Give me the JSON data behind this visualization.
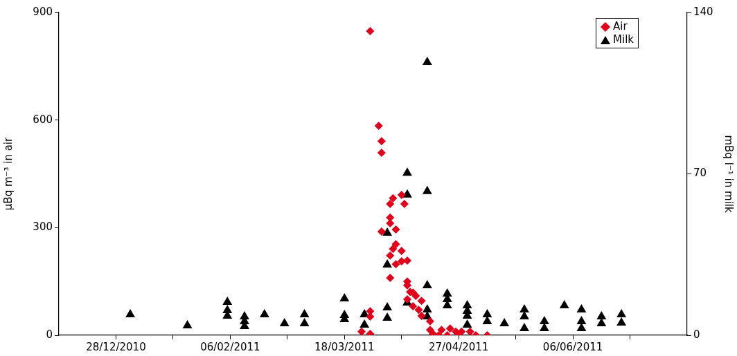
{
  "chart_data": {
    "type": "scatter",
    "ylabel": "µBq m⁻³ in air",
    "y2label": "mBq l⁻¹ in milk",
    "xlim": [
      "2010-12-08",
      "2011-07-16"
    ],
    "xticks": [
      {
        "value": "2010-12-28",
        "label": "28/12/2010"
      },
      {
        "value": "2011-01-17",
        "label": null
      },
      {
        "value": "2011-02-06",
        "label": "06/02/2011"
      },
      {
        "value": "2011-02-26",
        "label": null
      },
      {
        "value": "2011-03-18",
        "label": "18/03/2011"
      },
      {
        "value": "2011-04-07",
        "label": null
      },
      {
        "value": "2011-04-27",
        "label": "27/04/2011"
      },
      {
        "value": "2011-05-17",
        "label": null
      },
      {
        "value": "2011-06-06",
        "label": "06/06/2011"
      },
      {
        "value": "2011-06-26",
        "label": null
      }
    ],
    "ylim": [
      0,
      900
    ],
    "yticks": [
      0,
      300,
      600,
      900
    ],
    "y2lim": [
      0,
      140
    ],
    "y2ticks": [
      0,
      70,
      140
    ],
    "grid": false,
    "legend": "top right",
    "series": [
      {
        "name": "Air",
        "color": "#e2001a",
        "marker": "diamond",
        "x": [
          "2011-03-24",
          "2011-03-27",
          "2011-03-27",
          "2011-03-27",
          "2011-03-27",
          "2011-03-30",
          "2011-03-31",
          "2011-03-31",
          "2011-04-04",
          "2011-04-03",
          "2011-04-07",
          "2011-04-08",
          "2011-04-03",
          "2011-04-03",
          "2011-04-05",
          "2011-03-31",
          "2011-04-05",
          "2011-04-04",
          "2011-04-07",
          "2011-04-03",
          "2011-04-07",
          "2011-04-09",
          "2011-04-05",
          "2011-04-03",
          "2011-04-09",
          "2011-04-09",
          "2011-04-10",
          "2011-04-11",
          "2011-04-09",
          "2011-04-12",
          "2011-04-14",
          "2011-04-11",
          "2011-04-13",
          "2011-04-14",
          "2011-04-17",
          "2011-04-17",
          "2011-04-18",
          "2011-04-21",
          "2011-04-24",
          "2011-04-26",
          "2011-04-28",
          "2011-04-20",
          "2011-04-23",
          "2011-04-27",
          "2011-05-01",
          "2011-05-03",
          "2011-05-07"
        ],
        "values": [
          10,
          848,
          67,
          52,
          4,
          584,
          541,
          509,
          382,
          366,
          391,
          366,
          328,
          312,
          295,
          289,
          254,
          241,
          235,
          222,
          206,
          208,
          198,
          160,
          150,
          139,
          121,
          119,
          100,
          110,
          96,
          81,
          71,
          54,
          39,
          15,
          4,
          15,
          19,
          10,
          10,
          0,
          0,
          0,
          10,
          0,
          0
        ]
      },
      {
        "name": "Milk",
        "color": "#000000",
        "marker": "triangle",
        "axis": "y2",
        "x": [
          "2011-01-02",
          "2011-01-22",
          "2011-02-05",
          "2011-02-05",
          "2011-02-05",
          "2011-02-11",
          "2011-02-11",
          "2011-02-11",
          "2011-02-18",
          "2011-02-25",
          "2011-03-04",
          "2011-03-04",
          "2011-03-18",
          "2011-03-18",
          "2011-03-18",
          "2011-03-25",
          "2011-03-25",
          "2011-04-02",
          "2011-04-02",
          "2011-04-02",
          "2011-04-02",
          "2011-04-09",
          "2011-04-09",
          "2011-04-09",
          "2011-04-16",
          "2011-04-16",
          "2011-04-16",
          "2011-04-16",
          "2011-04-16",
          "2011-04-23",
          "2011-04-23",
          "2011-04-23",
          "2011-04-30",
          "2011-04-30",
          "2011-04-30",
          "2011-04-30",
          "2011-05-07",
          "2011-05-07",
          "2011-05-13",
          "2011-05-20",
          "2011-05-20",
          "2011-05-20",
          "2011-05-27",
          "2011-05-27",
          "2011-06-03",
          "2011-06-09",
          "2011-06-09",
          "2011-06-09",
          "2011-06-16",
          "2011-06-16",
          "2011-06-23",
          "2011-06-23"
        ],
        "values": [
          9.0,
          4.2,
          14.4,
          10.8,
          8.4,
          8.1,
          6.0,
          3.9,
          9.0,
          5.1,
          9.0,
          5.1,
          15.9,
          8.7,
          6.9,
          9.0,
          4.5,
          44.4,
          30.6,
          12.0,
          7.5,
          70.4,
          60.9,
          14.1,
          118.4,
          62.4,
          21.6,
          11.1,
          8.1,
          18.0,
          15.6,
          12.9,
          12.9,
          10.5,
          8.4,
          4.5,
          9.0,
          6.0,
          5.1,
          11.1,
          8.1,
          3.0,
          6.0,
          3.0,
          12.9,
          11.1,
          6.0,
          3.0,
          8.1,
          5.1,
          9.0,
          5.4
        ]
      }
    ]
  }
}
